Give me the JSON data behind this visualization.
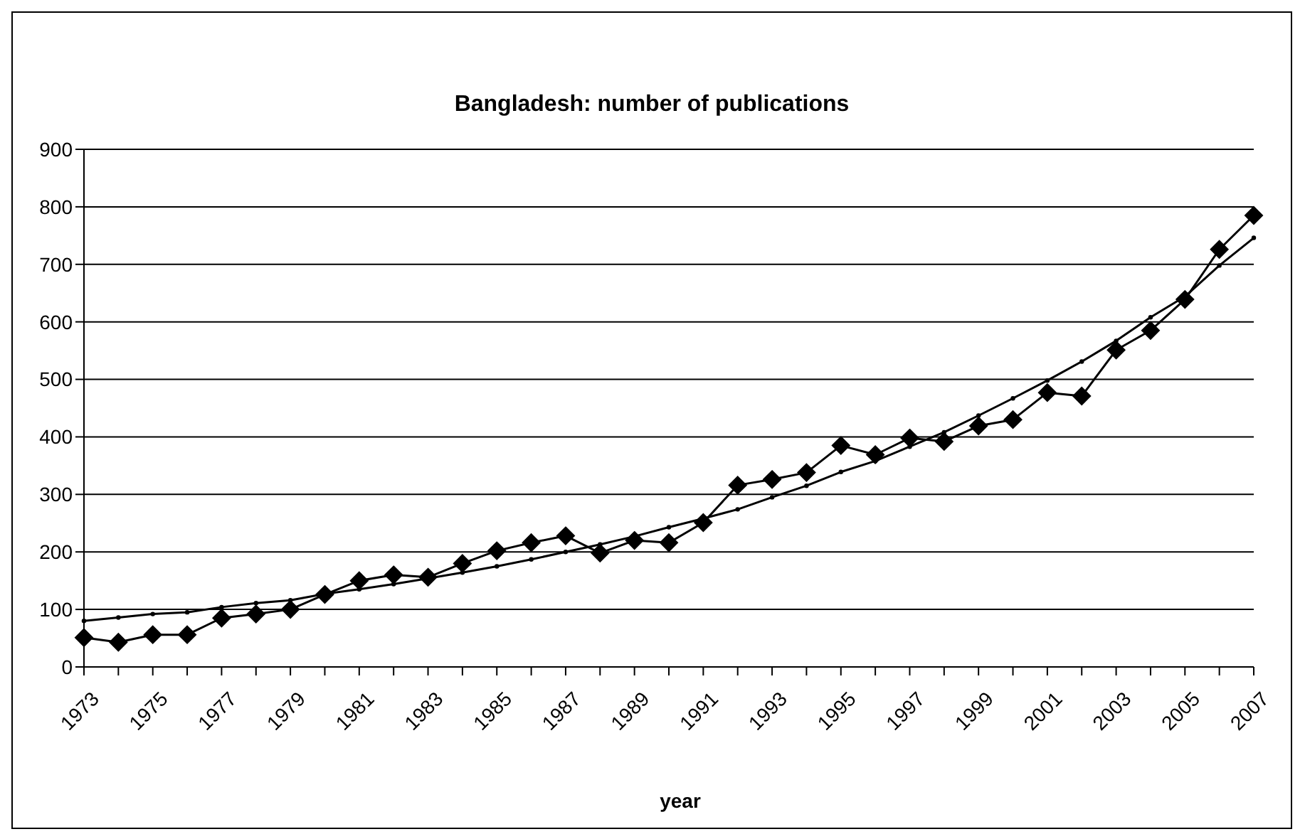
{
  "chart_data": {
    "type": "line",
    "title": "Bangladesh: number of publications",
    "xlabel": "year",
    "categories": [
      "1973",
      null,
      "1975",
      null,
      "1977",
      null,
      "1979",
      null,
      "1981",
      null,
      "1983",
      null,
      "1985",
      null,
      "1987",
      null,
      "1989",
      null,
      "1991",
      null,
      "1993",
      null,
      "1995",
      null,
      "1997",
      null,
      "1999",
      null,
      "2001",
      null,
      "2003",
      null,
      "2005",
      null,
      "2007"
    ],
    "series": [
      {
        "color": "#000000",
        "marker": "diamond",
        "values": [
          51,
          43,
          56,
          56,
          85,
          92,
          100,
          126,
          150,
          160,
          156,
          180,
          202,
          216,
          228,
          198,
          220,
          216,
          251,
          316,
          326,
          338,
          385,
          369,
          398,
          392,
          419,
          430,
          477,
          471,
          551,
          585,
          639,
          726,
          785
        ]
      },
      {
        "color": "#000000",
        "marker": "circle",
        "values": [
          80,
          86,
          92,
          95,
          104,
          111,
          116,
          127,
          135,
          144,
          154,
          164,
          175,
          187,
          200,
          213,
          227,
          243,
          258,
          274,
          295,
          315,
          339,
          358,
          383,
          408,
          437,
          467,
          498,
          531,
          567,
          608,
          644,
          698,
          746
        ]
      }
    ],
    "ylim": [
      0,
      900
    ],
    "yticks": [
      0,
      100,
      200,
      300,
      400,
      500,
      600,
      700,
      800,
      900
    ],
    "grid": "y"
  }
}
